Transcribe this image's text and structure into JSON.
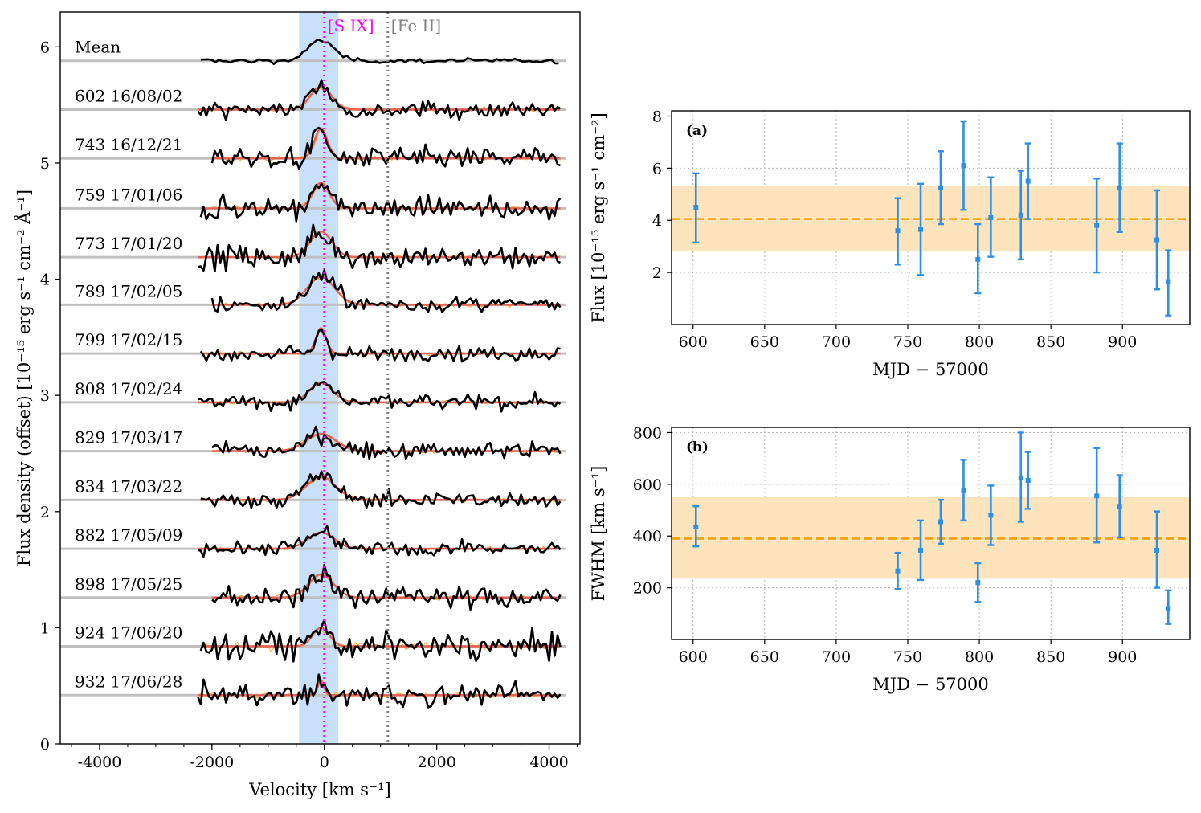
{
  "chart_data": [
    {
      "type": "line",
      "id": "spectra",
      "xlabel": "Velocity [km s⁻¹]",
      "ylabel": "Flux density (offset) [10⁻¹⁵ erg s⁻¹ cm⁻² Å⁻¹]",
      "xlim": [
        -4700,
        4550
      ],
      "ylim": [
        0,
        6.3
      ],
      "xticks": [
        -4000,
        -2000,
        0,
        2000,
        4000
      ],
      "xtick_labels": [
        "-4000",
        "-2000",
        "0",
        "2000",
        "4000"
      ],
      "yticks": [
        0,
        1,
        2,
        3,
        4,
        5,
        6
      ],
      "ytick_labels": [
        "0",
        "1",
        "2",
        "3",
        "4",
        "5",
        "6"
      ],
      "shaded_region": {
        "x0": -450,
        "x1": 250,
        "color": "#c8e0fb"
      },
      "vlines": [
        {
          "label": "[S IX]",
          "x": 0,
          "color": "#ff00ff"
        },
        {
          "label": "[Fe II]",
          "x": 1130,
          "color": "#808080"
        }
      ],
      "baseline_color": "#c0c0c0",
      "spectrum_color": "#000000",
      "fit_color": "#e86050",
      "model_color": "#f0b040",
      "spectra": [
        {
          "label": "Mean",
          "offset": 5.88,
          "amp": 0.18,
          "fwhm": 520,
          "noise": 0.015
        },
        {
          "label": "602 16/08/02",
          "offset": 5.46,
          "amp": 0.2,
          "fwhm": 440,
          "noise": 0.05
        },
        {
          "label": "743 16/12/21",
          "offset": 5.04,
          "amp": 0.26,
          "fwhm": 265,
          "noise": 0.07
        },
        {
          "label": "759 17/01/06",
          "offset": 4.61,
          "amp": 0.22,
          "fwhm": 345,
          "noise": 0.07
        },
        {
          "label": "773 17/01/20",
          "offset": 4.19,
          "amp": 0.22,
          "fwhm": 455,
          "noise": 0.07
        },
        {
          "label": "789 17/02/05",
          "offset": 3.78,
          "amp": 0.24,
          "fwhm": 575,
          "noise": 0.05
        },
        {
          "label": "799 17/02/15",
          "offset": 3.36,
          "amp": 0.22,
          "fwhm": 220,
          "noise": 0.045
        },
        {
          "label": "808 17/02/24",
          "offset": 2.94,
          "amp": 0.17,
          "fwhm": 480,
          "noise": 0.045
        },
        {
          "label": "829 17/03/17",
          "offset": 2.52,
          "amp": 0.15,
          "fwhm": 625,
          "noise": 0.055
        },
        {
          "label": "834 17/03/22",
          "offset": 2.1,
          "amp": 0.2,
          "fwhm": 615,
          "noise": 0.05
        },
        {
          "label": "882 17/05/09",
          "offset": 1.68,
          "amp": 0.14,
          "fwhm": 555,
          "noise": 0.045
        },
        {
          "label": "898 17/05/25",
          "offset": 1.26,
          "amp": 0.2,
          "fwhm": 515,
          "noise": 0.07
        },
        {
          "label": "924 17/06/20",
          "offset": 0.84,
          "amp": 0.16,
          "fwhm": 345,
          "noise": 0.08
        },
        {
          "label": "932 17/06/28",
          "offset": 0.42,
          "amp": 0.13,
          "fwhm": 125,
          "noise": 0.065
        }
      ]
    },
    {
      "type": "scatter",
      "id": "flux",
      "panel_label": "(a)",
      "xlabel": "MJD − 57000",
      "ylabel": "Flux [10⁻¹⁵ erg s⁻¹ cm⁻²]",
      "xlim": [
        585,
        947
      ],
      "ylim": [
        0,
        8.2
      ],
      "xticks": [
        600,
        650,
        700,
        750,
        800,
        850,
        900
      ],
      "xtick_labels": [
        "600",
        "650",
        "700",
        "750",
        "800",
        "850",
        "900"
      ],
      "yticks": [
        2,
        4,
        6,
        8
      ],
      "ytick_labels": [
        "2",
        "4",
        "6",
        "8"
      ],
      "grid": true,
      "mean": 4.05,
      "band": [
        2.8,
        5.3
      ],
      "mean_color": "#f5a000",
      "band_color": "#fde4bc",
      "point_color": "#2e8fe6",
      "points": [
        {
          "x": 602,
          "y": 4.5,
          "lo": 3.15,
          "hi": 5.8
        },
        {
          "x": 743,
          "y": 3.6,
          "lo": 2.3,
          "hi": 4.85
        },
        {
          "x": 759,
          "y": 3.65,
          "lo": 1.9,
          "hi": 5.4
        },
        {
          "x": 773,
          "y": 5.25,
          "lo": 3.85,
          "hi": 6.65
        },
        {
          "x": 789,
          "y": 6.1,
          "lo": 4.4,
          "hi": 7.8
        },
        {
          "x": 799,
          "y": 2.5,
          "lo": 1.2,
          "hi": 3.85
        },
        {
          "x": 808,
          "y": 4.1,
          "lo": 2.6,
          "hi": 5.65
        },
        {
          "x": 829,
          "y": 4.2,
          "lo": 2.5,
          "hi": 5.9
        },
        {
          "x": 834,
          "y": 5.5,
          "lo": 4.05,
          "hi": 6.95
        },
        {
          "x": 882,
          "y": 3.8,
          "lo": 2.0,
          "hi": 5.6
        },
        {
          "x": 898,
          "y": 5.25,
          "lo": 3.55,
          "hi": 6.95
        },
        {
          "x": 924,
          "y": 3.25,
          "lo": 1.35,
          "hi": 5.15
        },
        {
          "x": 932,
          "y": 1.65,
          "lo": 0.35,
          "hi": 2.85
        }
      ]
    },
    {
      "type": "scatter",
      "id": "fwhm",
      "panel_label": "(b)",
      "xlabel": "MJD − 57000",
      "ylabel": "FWHM [km s⁻¹]",
      "xlim": [
        585,
        947
      ],
      "ylim": [
        0,
        820
      ],
      "xticks": [
        600,
        650,
        700,
        750,
        800,
        850,
        900
      ],
      "xtick_labels": [
        "600",
        "650",
        "700",
        "750",
        "800",
        "850",
        "900"
      ],
      "yticks": [
        200,
        400,
        600,
        800
      ],
      "ytick_labels": [
        "200",
        "400",
        "600",
        "800"
      ],
      "grid": true,
      "mean": 390,
      "band": [
        235,
        550
      ],
      "mean_color": "#f5a000",
      "band_color": "#fde4bc",
      "point_color": "#2e8fe6",
      "points": [
        {
          "x": 602,
          "y": 435,
          "lo": 360,
          "hi": 515
        },
        {
          "x": 743,
          "y": 265,
          "lo": 195,
          "hi": 335
        },
        {
          "x": 759,
          "y": 345,
          "lo": 230,
          "hi": 460
        },
        {
          "x": 773,
          "y": 455,
          "lo": 370,
          "hi": 540
        },
        {
          "x": 789,
          "y": 575,
          "lo": 460,
          "hi": 695
        },
        {
          "x": 799,
          "y": 220,
          "lo": 145,
          "hi": 295
        },
        {
          "x": 808,
          "y": 480,
          "lo": 365,
          "hi": 595
        },
        {
          "x": 829,
          "y": 625,
          "lo": 455,
          "hi": 800
        },
        {
          "x": 834,
          "y": 615,
          "lo": 505,
          "hi": 725
        },
        {
          "x": 882,
          "y": 555,
          "lo": 375,
          "hi": 740
        },
        {
          "x": 898,
          "y": 515,
          "lo": 395,
          "hi": 635
        },
        {
          "x": 924,
          "y": 345,
          "lo": 200,
          "hi": 495
        },
        {
          "x": 932,
          "y": 120,
          "lo": 60,
          "hi": 190
        }
      ]
    }
  ]
}
